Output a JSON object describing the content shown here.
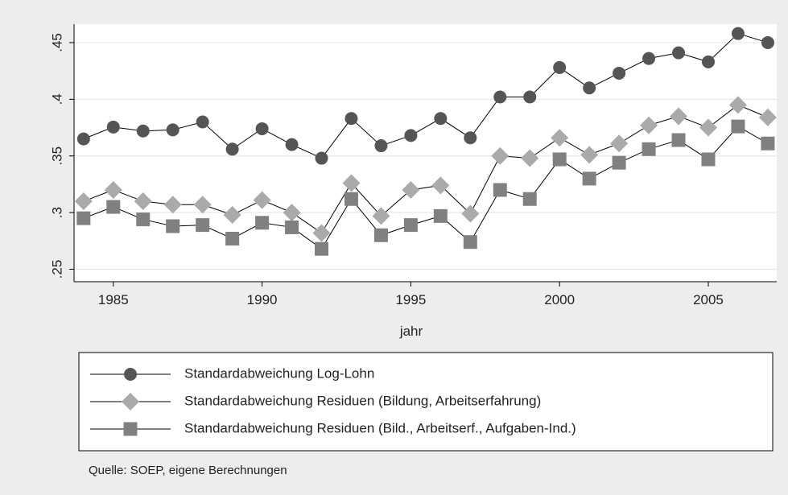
{
  "chart_data": {
    "type": "line",
    "x": [
      1984,
      1985,
      1986,
      1987,
      1988,
      1989,
      1990,
      1991,
      1992,
      1993,
      1994,
      1995,
      1996,
      1997,
      1998,
      1999,
      2000,
      2001,
      2002,
      2003,
      2004,
      2005,
      2006,
      2007
    ],
    "series": [
      {
        "name": "Standardabweichung Log-Lohn",
        "color": "#555555",
        "marker": "circle",
        "values": [
          0.365,
          0.3755,
          0.372,
          0.373,
          0.38,
          0.356,
          0.374,
          0.36,
          0.348,
          0.383,
          0.359,
          0.368,
          0.383,
          0.366,
          0.402,
          0.402,
          0.428,
          0.41,
          0.423,
          0.436,
          0.441,
          0.433,
          0.458,
          0.45
        ]
      },
      {
        "name": "Standardabweichung Residuen (Bildung, Arbeitserfahrung)",
        "color": "#aaaaaa",
        "marker": "diamond",
        "values": [
          0.31,
          0.32,
          0.31,
          0.307,
          0.307,
          0.298,
          0.311,
          0.3,
          0.282,
          0.326,
          0.297,
          0.32,
          0.324,
          0.299,
          0.35,
          0.348,
          0.366,
          0.351,
          0.361,
          0.377,
          0.385,
          0.375,
          0.395,
          0.384
        ]
      },
      {
        "name": "Standardabweichung Residuen (Bild., Arbeitserf., Aufgaben-Ind.)",
        "color": "#808080",
        "marker": "square",
        "values": [
          0.295,
          0.305,
          0.294,
          0.288,
          0.289,
          0.277,
          0.291,
          0.287,
          0.268,
          0.312,
          0.28,
          0.289,
          0.297,
          0.274,
          0.32,
          0.312,
          0.347,
          0.33,
          0.344,
          0.356,
          0.364,
          0.347,
          0.376,
          0.361
        ]
      }
    ],
    "xlabel": "jahr",
    "xlim": [
      1983.68,
      2007.3
    ],
    "xticks": [
      1985,
      1990,
      1995,
      2000,
      2005
    ],
    "ylim": [
      0.239,
      0.4663
    ],
    "yticks": [
      {
        "value": 0.25,
        "label": ".25"
      },
      {
        "value": 0.3,
        "label": ".3"
      },
      {
        "value": 0.35,
        "label": ".35"
      },
      {
        "value": 0.4,
        "label": ".4"
      },
      {
        "value": 0.45,
        "label": ".45"
      }
    ],
    "grid": true,
    "note": "Quelle: SOEP, eigene Berechnungen"
  }
}
